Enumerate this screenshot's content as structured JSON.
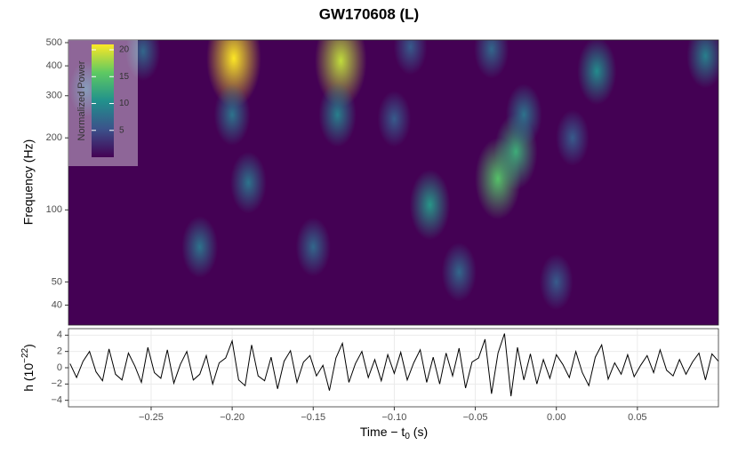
{
  "chart_data": [
    {
      "type": "heatmap",
      "title": "GW170608 (L)",
      "ylabel": "Frequency (Hz)",
      "log_y": true,
      "xlim": [
        -0.301,
        0.1
      ],
      "ylim": [
        33,
        513
      ],
      "yticks": [
        40,
        50,
        100,
        200,
        300,
        400,
        500
      ],
      "colormap": "viridis",
      "colorbar": {
        "label": "Normalized Power",
        "lim": [
          0,
          21
        ],
        "ticks": [
          5,
          10,
          15,
          20
        ]
      },
      "hotspots": [
        {
          "time": -0.199,
          "frequency": 430,
          "power": 21
        },
        {
          "time": -0.133,
          "frequency": 420,
          "power": 19
        },
        {
          "time": -0.135,
          "frequency": 250,
          "power": 9
        },
        {
          "time": -0.036,
          "frequency": 135,
          "power": 15
        },
        {
          "time": -0.025,
          "frequency": 175,
          "power": 13
        },
        {
          "time": -0.02,
          "frequency": 250,
          "power": 8
        },
        {
          "time": -0.078,
          "frequency": 105,
          "power": 11
        },
        {
          "time": -0.2,
          "frequency": 250,
          "power": 8
        },
        {
          "time": -0.19,
          "frequency": 130,
          "power": 8
        },
        {
          "time": -0.29,
          "frequency": 320,
          "power": 6
        },
        {
          "time": 0.025,
          "frequency": 380,
          "power": 10
        },
        {
          "time": 0.092,
          "frequency": 440,
          "power": 9
        },
        {
          "time": -0.255,
          "frequency": 460,
          "power": 7
        },
        {
          "time": -0.09,
          "frequency": 480,
          "power": 6
        },
        {
          "time": -0.04,
          "frequency": 470,
          "power": 7
        },
        {
          "time": -0.22,
          "frequency": 70,
          "power": 8
        },
        {
          "time": -0.15,
          "frequency": 70,
          "power": 7
        },
        {
          "time": -0.06,
          "frequency": 55,
          "power": 7
        },
        {
          "time": 0.0,
          "frequency": 50,
          "power": 6
        },
        {
          "time": 0.01,
          "frequency": 200,
          "power": 6
        },
        {
          "time": -0.1,
          "frequency": 240,
          "power": 6
        }
      ]
    },
    {
      "type": "line",
      "color": "#000000",
      "grid": true,
      "xlabel": {
        "text": "Time − t",
        "sub": "0",
        "tail": " (s)"
      },
      "ylabel": {
        "text": "h (10",
        "sup": "−22",
        "tail": ")"
      },
      "xlim": [
        -0.301,
        0.1
      ],
      "ylim": [
        -4.8,
        4.8
      ],
      "xticks": [
        {
          "value": -0.25,
          "label": "−0.25"
        },
        {
          "value": -0.2,
          "label": "−0.20"
        },
        {
          "value": -0.15,
          "label": "−0.15"
        },
        {
          "value": -0.1,
          "label": "−0.10"
        },
        {
          "value": -0.05,
          "label": "−0.05"
        },
        {
          "value": 0,
          "label": "0.00"
        },
        {
          "value": 0.05,
          "label": "0.05"
        }
      ],
      "yticks": [
        {
          "value": -4,
          "label": "−4"
        },
        {
          "value": -2,
          "label": "−2"
        },
        0,
        2,
        4
      ],
      "x": [
        -0.3,
        -0.296,
        -0.292,
        -0.288,
        -0.284,
        -0.28,
        -0.276,
        -0.272,
        -0.268,
        -0.264,
        -0.26,
        -0.256,
        -0.252,
        -0.248,
        -0.244,
        -0.24,
        -0.236,
        -0.232,
        -0.228,
        -0.224,
        -0.22,
        -0.216,
        -0.212,
        -0.208,
        -0.204,
        -0.2,
        -0.196,
        -0.192,
        -0.188,
        -0.184,
        -0.18,
        -0.176,
        -0.172,
        -0.168,
        -0.164,
        -0.16,
        -0.156,
        -0.152,
        -0.148,
        -0.144,
        -0.14,
        -0.136,
        -0.132,
        -0.128,
        -0.124,
        -0.12,
        -0.116,
        -0.112,
        -0.108,
        -0.104,
        -0.1,
        -0.096,
        -0.092,
        -0.088,
        -0.084,
        -0.08,
        -0.076,
        -0.072,
        -0.068,
        -0.064,
        -0.06,
        -0.056,
        -0.052,
        -0.048,
        -0.044,
        -0.04,
        -0.036,
        -0.032,
        -0.028,
        -0.024,
        -0.02,
        -0.016,
        -0.012,
        -0.008,
        -0.004,
        0,
        0.004,
        0.008,
        0.012,
        0.016,
        0.02,
        0.024,
        0.028,
        0.032,
        0.036,
        0.04,
        0.044,
        0.048,
        0.052,
        0.056,
        0.06,
        0.064,
        0.068,
        0.072,
        0.076,
        0.08,
        0.084,
        0.088,
        0.092,
        0.096,
        0.1
      ],
      "values": [
        0.5,
        -1.2,
        0.8,
        2.0,
        -0.5,
        -1.6,
        2.3,
        -0.8,
        -1.5,
        1.8,
        0.2,
        -1.8,
        2.5,
        -0.6,
        -1.3,
        2.2,
        -1.9,
        0.4,
        2.0,
        -1.5,
        -0.8,
        1.5,
        -2.0,
        0.6,
        1.2,
        3.3,
        -1.5,
        -2.2,
        2.8,
        -1.0,
        -1.6,
        1.3,
        -2.6,
        0.8,
        2.1,
        -1.8,
        0.7,
        1.5,
        -1.0,
        0.3,
        -2.8,
        1.2,
        3.0,
        -1.8,
        0.5,
        2.0,
        -1.2,
        1.0,
        -1.6,
        1.6,
        -0.7,
        1.9,
        -1.5,
        0.6,
        2.2,
        -1.8,
        1.3,
        -2.0,
        1.8,
        -1.0,
        2.4,
        -2.5,
        0.7,
        1.2,
        3.5,
        -3.2,
        1.8,
        4.2,
        -3.5,
        2.5,
        -1.5,
        1.7,
        -2.0,
        1.0,
        -1.3,
        1.6,
        0.4,
        -1.2,
        2.0,
        -0.6,
        -2.2,
        1.3,
        2.8,
        -1.4,
        0.6,
        -0.8,
        1.6,
        -1.1,
        0.3,
        1.5,
        -0.6,
        2.2,
        -0.3,
        -1.0,
        1.0,
        -0.8,
        0.7,
        1.8,
        -1.5,
        1.7,
        0.8
      ]
    }
  ]
}
